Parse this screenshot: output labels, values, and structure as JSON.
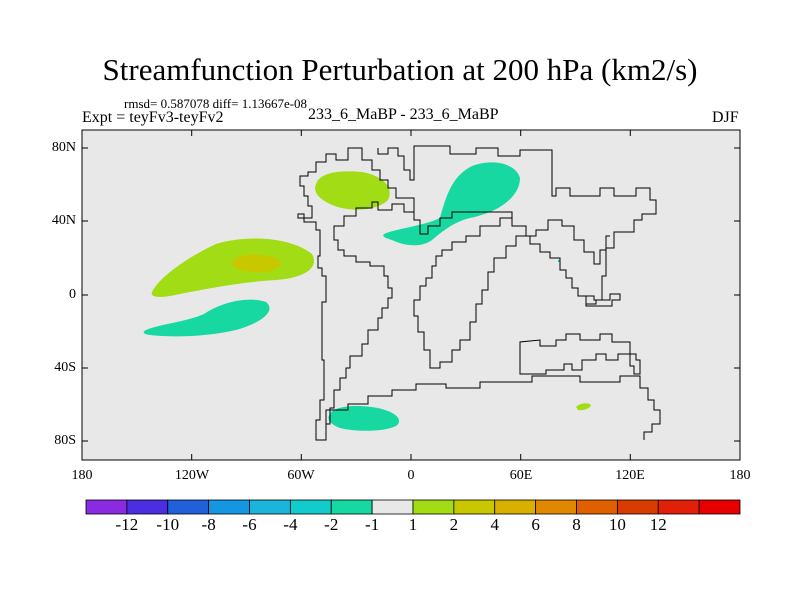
{
  "title": "Streamfunction Perturbation at 200 hPa (km2/s)",
  "stats": "rmsd= 0.587078  diff= 1.13667e-08",
  "expt": "Expt = teyFv3-teyFv2",
  "case": "233_6_MaBP - 233_6_MaBP",
  "season": "DJF",
  "colors": {
    "map_background": "#e8e8e8",
    "coast": "#000000",
    "cb": [
      "#8a2be2",
      "#4b2ee0",
      "#2060d8",
      "#1496e0",
      "#1ab4dc",
      "#12cccc",
      "#16d8a0",
      "#e8e8e8",
      "#a2dc14",
      "#c8c800",
      "#d8b000",
      "#e08800",
      "#e06000",
      "#d83c00",
      "#e02008",
      "#e80000"
    ]
  },
  "axes": {
    "y_ticks": [
      "80N",
      "40N",
      "0",
      "40S",
      "80S"
    ],
    "x_ticks": [
      "180",
      "120W",
      "60W",
      "0",
      "60E",
      "120E",
      "180"
    ]
  },
  "colorbar": {
    "labels": [
      "-12",
      "-10",
      "-8",
      "-6",
      "-4",
      "-2",
      "-1",
      "1",
      "2",
      "4",
      "6",
      "8",
      "10",
      "12"
    ]
  },
  "map": {
    "lon_range": [
      -180,
      180
    ],
    "lat_range": [
      -90,
      90
    ],
    "anomalies": [
      {
        "name": "anomaly-north-pacific-positive",
        "lon": -75,
        "lat": 13,
        "level": "2"
      },
      {
        "name": "anomaly-north-pacific-core",
        "lon": -84,
        "lat": 18,
        "level": "4"
      },
      {
        "name": "anomaly-south-pacific-negative",
        "lon": -95,
        "lat": -15,
        "level": "-1"
      },
      {
        "name": "anomaly-north-atlantic-positive",
        "lon": -32,
        "lat": 57,
        "level": "2"
      },
      {
        "name": "anomaly-eurasia-negative",
        "lon": 40,
        "lat": 48,
        "level": "-1"
      },
      {
        "name": "anomaly-southern-ocean-negative",
        "lon": -25,
        "lat": -68,
        "level": "-1"
      },
      {
        "name": "anomaly-indian-ocean-positive",
        "lon": 95,
        "lat": -61,
        "level": "2"
      }
    ]
  }
}
